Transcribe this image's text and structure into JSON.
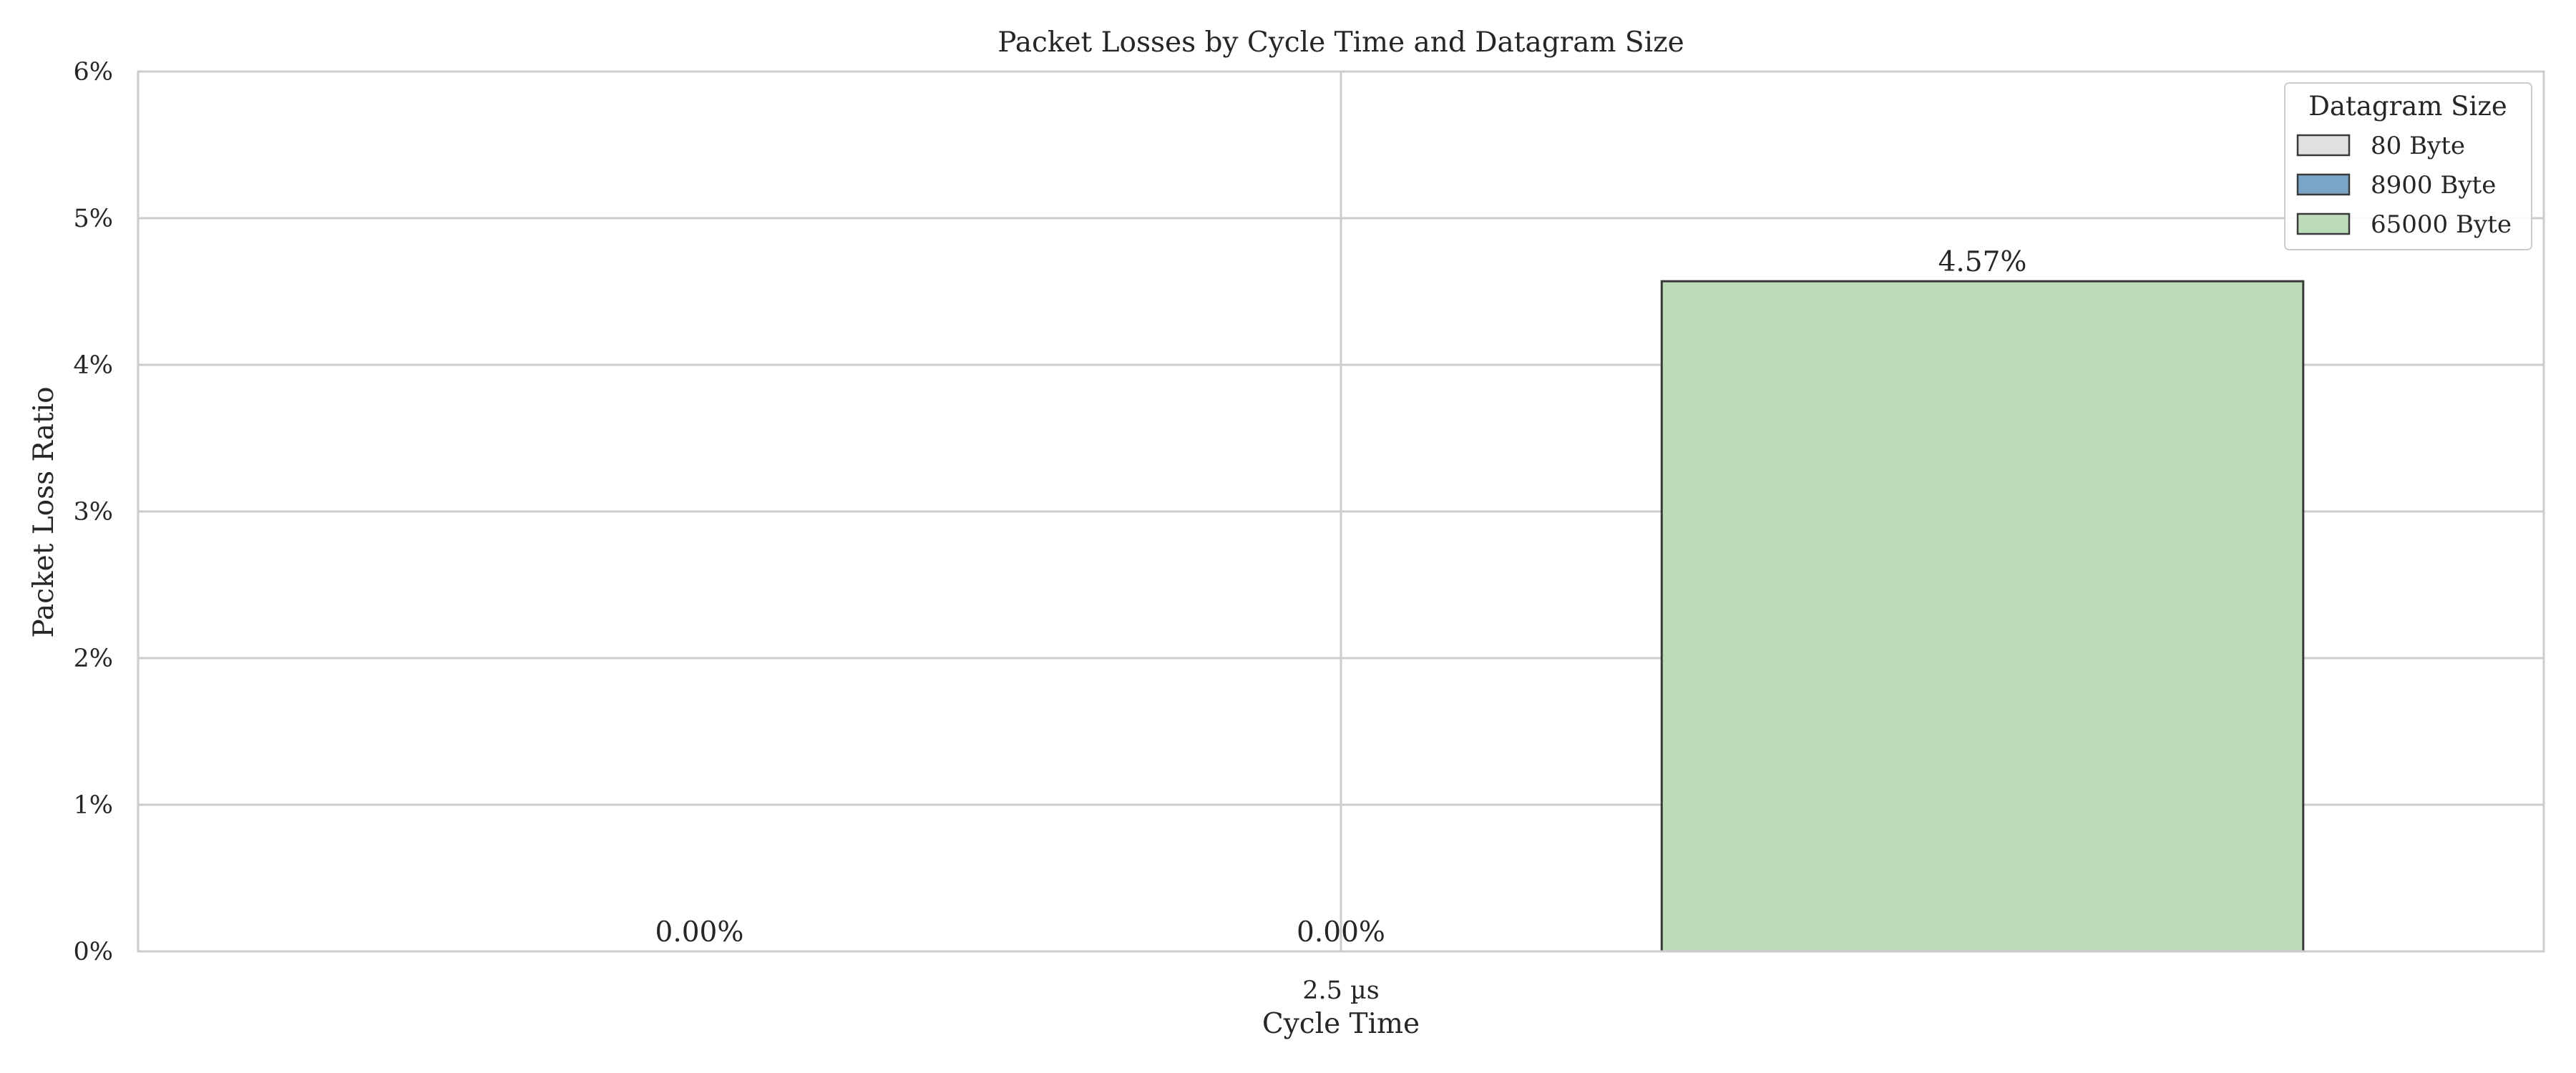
{
  "chart_data": {
    "type": "bar",
    "title": "Packet Losses by Cycle Time and Datagram Size",
    "xlabel": "Cycle Time",
    "ylabel": "Packet Loss Ratio",
    "categories": [
      "2.5 µs"
    ],
    "series": [
      {
        "name": "80 Byte",
        "values": [
          0.0
        ],
        "label": "0.00%",
        "color": "#e0e0e0"
      },
      {
        "name": "8900 Byte",
        "values": [
          0.0
        ],
        "label": "0.00%",
        "color": "#7ba4c9"
      },
      {
        "name": "65000 Byte",
        "values": [
          4.57
        ],
        "label": "4.57%",
        "color": "#bcdbb9"
      }
    ],
    "ylim": [
      0,
      6
    ],
    "yticks": [
      0,
      1,
      2,
      3,
      4,
      5,
      6
    ],
    "ytick_labels": [
      "0%",
      "1%",
      "2%",
      "3%",
      "4%",
      "5%",
      "6%"
    ],
    "grid": true,
    "legend": {
      "title": "Datagram Size",
      "position": "top-right"
    }
  }
}
